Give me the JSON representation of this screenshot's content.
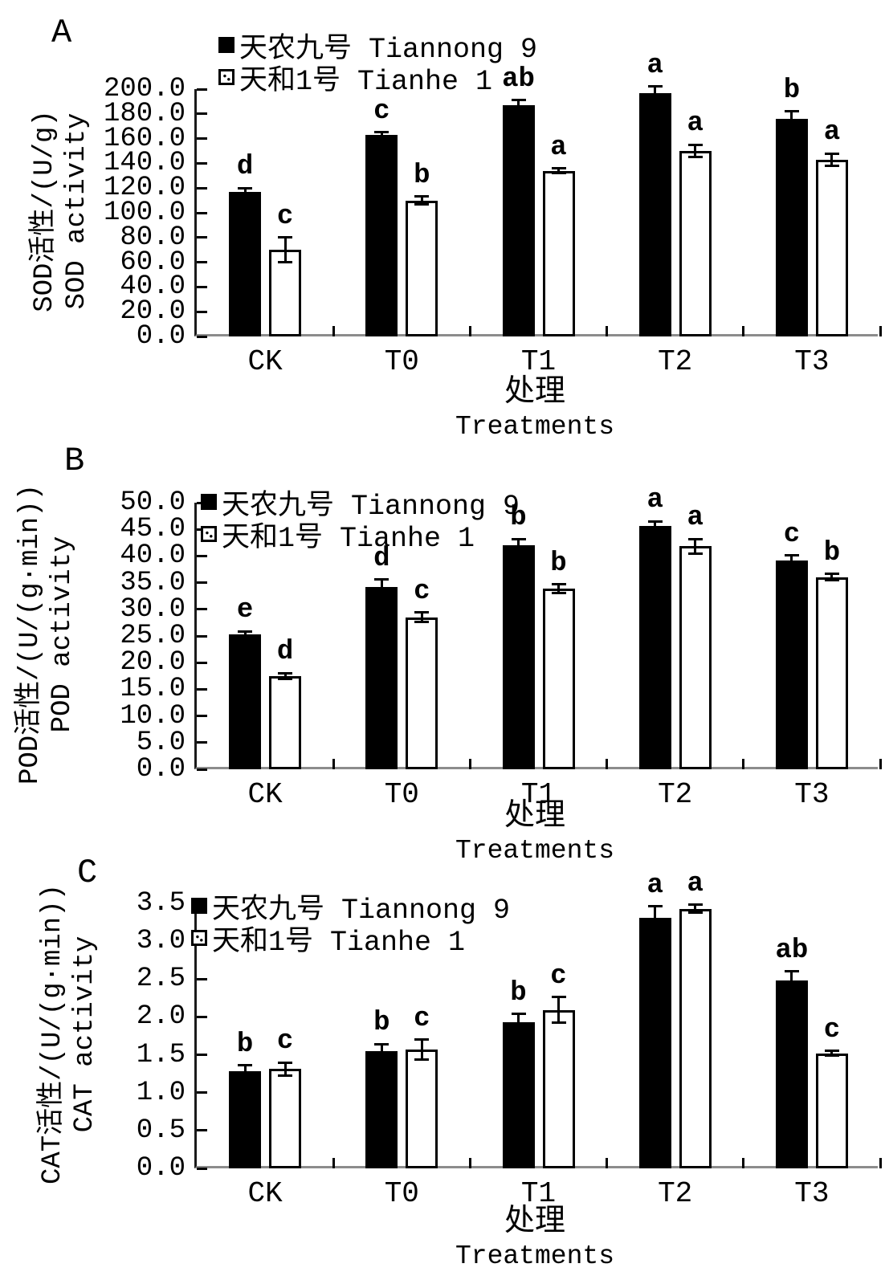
{
  "colors": {
    "bar_tiannong9": "#000000",
    "bar_tianhe1": "#ffffff",
    "bar_border": "#000000",
    "axis_line": "#8c8c8c",
    "text": "#000000",
    "background": "#ffffff"
  },
  "chart_data": [
    {
      "type": "bar",
      "panel_label": "A",
      "ylabel_cn": "SOD活性/(U/g)",
      "ylabel_en": "SOD activity",
      "xlabel_cn": "处理",
      "xlabel_en": "Treatments",
      "categories": [
        "CK",
        "T0",
        "T1",
        "T2",
        "T3"
      ],
      "ylim": [
        0,
        200
      ],
      "ytick_step": 20,
      "ytick_labels": [
        "0.0",
        "20.0",
        "40.0",
        "60.0",
        "80.0",
        "100.0",
        "120.0",
        "140.0",
        "160.0",
        "180.0",
        "200.0"
      ],
      "grid": false,
      "legend_position": "top-left-inside",
      "series": [
        {
          "name": "天农九号 Tiannong 9",
          "marker": "filled-black-square",
          "fill": "#000000",
          "values": [
            117,
            163,
            187,
            197,
            176
          ],
          "errors": [
            3,
            2,
            4,
            5,
            6
          ],
          "sig_letters": [
            "d",
            "c",
            "ab",
            "a",
            "b"
          ]
        },
        {
          "name": "天和1号 Tianhe 1",
          "marker": "open-dotted-square",
          "fill": "#ffffff",
          "values": [
            70,
            110,
            134,
            150,
            143
          ],
          "errors": [
            10,
            3,
            2,
            5,
            5
          ],
          "sig_letters": [
            "c",
            "b",
            "a",
            "a",
            "a"
          ]
        }
      ]
    },
    {
      "type": "bar",
      "panel_label": "B",
      "ylabel_cn": "POD活性/(U/(g·min))",
      "ylabel_en": "POD activity",
      "xlabel_cn": "处理",
      "xlabel_en": "Treatments",
      "categories": [
        "CK",
        "T0",
        "T1",
        "T2",
        "T3"
      ],
      "ylim": [
        0,
        50
      ],
      "ytick_step": 5,
      "ytick_labels": [
        "0.0",
        "5.0",
        "10.0",
        "15.0",
        "20.0",
        "25.0",
        "30.0",
        "35.0",
        "40.0",
        "45.0",
        "50.0"
      ],
      "grid": false,
      "legend_position": "top-left-inside",
      "series": [
        {
          "name": "天农九号 Tiannong 9",
          "marker": "filled-black-square",
          "fill": "#000000",
          "values": [
            25.3,
            34.2,
            42.0,
            45.7,
            39.2
          ],
          "errors": [
            0.6,
            1.4,
            1.2,
            0.8,
            0.9
          ],
          "sig_letters": [
            "e",
            "d",
            "b",
            "a",
            "c"
          ]
        },
        {
          "name": "天和1号 Tianhe 1",
          "marker": "open-dotted-square",
          "fill": "#ffffff",
          "values": [
            17.5,
            28.5,
            33.9,
            41.8,
            36.0
          ],
          "errors": [
            0.5,
            0.9,
            0.8,
            1.4,
            0.6
          ],
          "sig_letters": [
            "d",
            "c",
            "b",
            "a",
            "b"
          ]
        }
      ]
    },
    {
      "type": "bar",
      "panel_label": "C",
      "ylabel_cn": "CAT活性/(U/(g·min))",
      "ylabel_en": "CAT activity",
      "xlabel_cn": "处理",
      "xlabel_en": "Treatments",
      "categories": [
        "CK",
        "T0",
        "T1",
        "T2",
        "T3"
      ],
      "ylim": [
        0,
        3.5
      ],
      "ytick_step": 0.5,
      "ytick_labels": [
        "0.0",
        "0.5",
        "1.0",
        "1.5",
        "2.0",
        "2.5",
        "3.0",
        "3.5"
      ],
      "grid": false,
      "legend_position": "top-left-inside",
      "series": [
        {
          "name": "天农九号 Tiannong 9",
          "marker": "filled-black-square",
          "fill": "#000000",
          "values": [
            1.28,
            1.55,
            1.93,
            3.31,
            2.48
          ],
          "errors": [
            0.08,
            0.09,
            0.11,
            0.15,
            0.12
          ],
          "sig_letters": [
            "b",
            "b",
            "b",
            "a",
            "ab"
          ]
        },
        {
          "name": "天和1号 Tianhe 1",
          "marker": "open-dotted-square",
          "fill": "#ffffff",
          "values": [
            1.31,
            1.57,
            2.09,
            3.43,
            1.52
          ],
          "errors": [
            0.09,
            0.13,
            0.17,
            0.05,
            0.03
          ],
          "sig_letters": [
            "c",
            "c",
            "c",
            "a",
            "c"
          ]
        }
      ]
    }
  ]
}
